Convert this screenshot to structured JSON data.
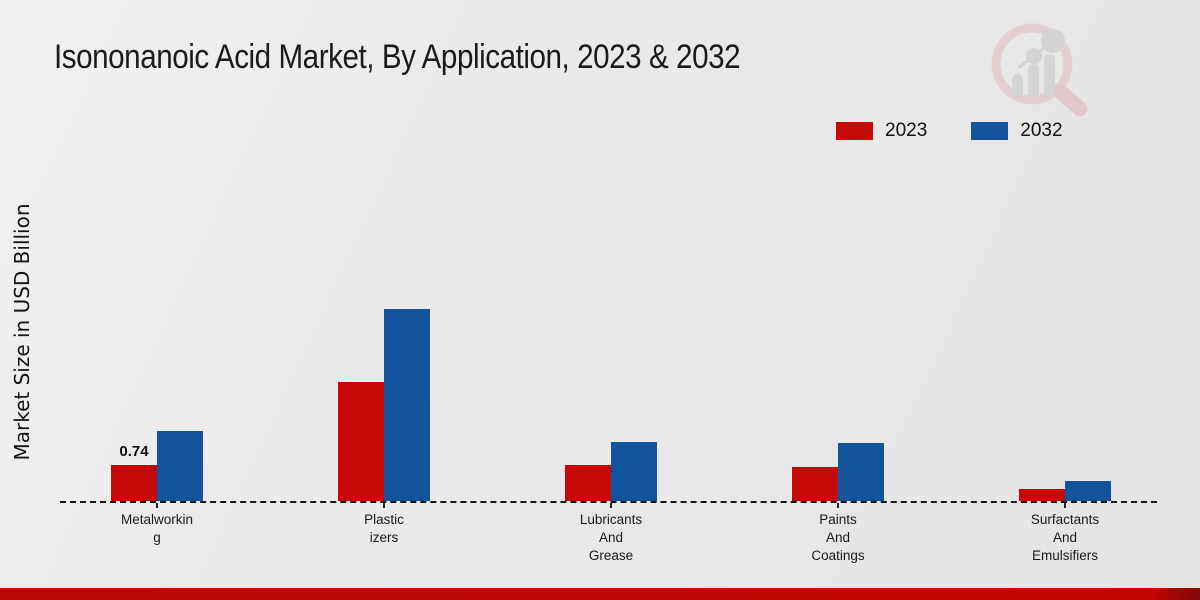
{
  "header": {
    "title": "Isononanoic Acid Market, By Application, 2023 & 2032"
  },
  "y_axis": {
    "label": "Market Size in USD Billion"
  },
  "legend": {
    "items": [
      {
        "label": "2023",
        "color": "#c50808"
      },
      {
        "label": "2032",
        "color": "#11549c"
      }
    ]
  },
  "watermark": {
    "name": "market-research-magnifier-logo"
  },
  "colors": {
    "bar_2023": "#c50808",
    "bar_2032": "#11549c",
    "baseline": "#161616",
    "bottom_banner": "#c30404",
    "background": "#e9e9e9"
  },
  "chart_data": {
    "type": "bar",
    "title": "Isononanoic Acid Market, By Application, 2023 & 2032",
    "xlabel": "",
    "ylabel": "Market Size in USD Billion",
    "categories": [
      "Metalworking",
      "Plasticizers",
      "Lubricants And Grease",
      "Paints And Coatings",
      "Surfactants And Emulsifiers"
    ],
    "category_display": [
      "Metalworkin\ng",
      "Plastic\nizers",
      "Lubricants\nAnd\nGrease",
      "Paints\nAnd\nCoatings",
      "Surfactants\nAnd\nEmulsifiers"
    ],
    "series": [
      {
        "name": "2023",
        "color": "#c50808",
        "values": [
          0.74,
          2.47,
          0.76,
          0.7,
          0.24
        ]
      },
      {
        "name": "2032",
        "color": "#11549c",
        "values": [
          1.45,
          4.0,
          1.22,
          1.2,
          0.41
        ]
      }
    ],
    "ylim": [
      0,
      4.2
    ],
    "grid": false,
    "y_ticks_shown": false,
    "baseline_style": "dashed",
    "legend_position": "top-right",
    "annotations": [
      {
        "series_index": 0,
        "category_index": 0,
        "text": "0.74"
      }
    ]
  }
}
